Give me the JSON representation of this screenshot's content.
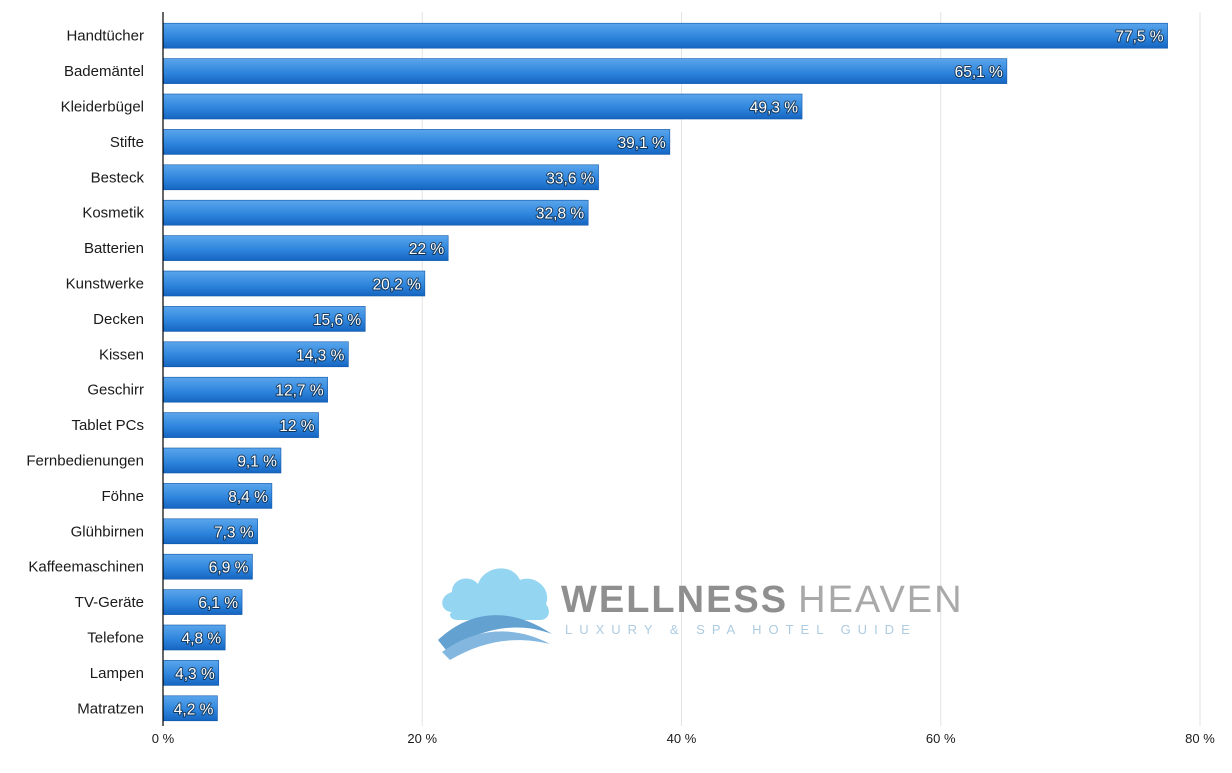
{
  "chart_data": {
    "type": "bar",
    "orientation": "horizontal",
    "categories": [
      "Handtücher",
      "Bademäntel",
      "Kleiderbügel",
      "Stifte",
      "Besteck",
      "Kosmetik",
      "Batterien",
      "Kunstwerke",
      "Decken",
      "Kissen",
      "Geschirr",
      "Tablet PCs",
      "Fernbedienungen",
      "Föhne",
      "Glühbirnen",
      "Kaffeemaschinen",
      "TV-Geräte",
      "Telefone",
      "Lampen",
      "Matratzen"
    ],
    "values": [
      77.5,
      65.1,
      49.3,
      39.1,
      33.6,
      32.8,
      22,
      20.2,
      15.6,
      14.3,
      12.7,
      12,
      9.1,
      8.4,
      7.3,
      6.9,
      6.1,
      4.8,
      4.3,
      4.2
    ],
    "value_labels": [
      "77,5 %",
      "65,1 %",
      "49,3 %",
      "39,1 %",
      "33,6 %",
      "32,8 %",
      "22 %",
      "20,2 %",
      "15,6 %",
      "14,3 %",
      "12,7 %",
      "12 %",
      "9,1 %",
      "8,4 %",
      "7,3 %",
      "6,9 %",
      "6,1 %",
      "4,8 %",
      "4,3 %",
      "4,2 %"
    ],
    "x_ticks": [
      0,
      20,
      40,
      60,
      80
    ],
    "x_tick_labels": [
      "0 %",
      "20 %",
      "40 %",
      "60 %",
      "80 %"
    ],
    "xlim": [
      0,
      80
    ],
    "grid": true,
    "title": "",
    "xlabel": "",
    "ylabel": "",
    "colors": {
      "bar_light": "#5aa5ec",
      "bar_mid": "#2f86dd",
      "bar_dark": "#1565c0",
      "bar_edge": "#0f56a8",
      "grid": "#e3e3e3"
    }
  },
  "watermark": {
    "name_bold": "WELLNESS",
    "name_light": "HEAVEN",
    "tagline": "LUXURY & SPA HOTEL GUIDE",
    "colors": {
      "bold": "#8a8a8a",
      "light": "#a5a5a5",
      "tagline": "#a9c9e0",
      "cloud": "#8fd3f2",
      "wave": "#5b9ccf"
    }
  }
}
